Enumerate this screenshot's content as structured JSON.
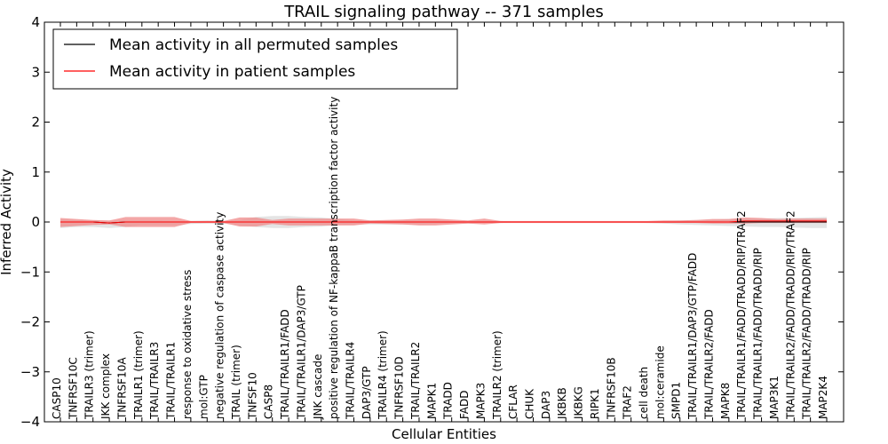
{
  "chart_data": {
    "type": "line",
    "title": "TRAIL signaling pathway -- 371 samples",
    "xlabel": "Cellular Entities",
    "ylabel": "Inferred Activity",
    "ylim": [
      -4,
      4
    ],
    "yticks": [
      "4",
      "3",
      "2",
      "1",
      "0",
      "−1",
      "−2",
      "−3",
      "−4"
    ],
    "legend": {
      "placement": "top-left",
      "entries": [
        {
          "label": "Mean activity in all permuted samples",
          "color": "#000000"
        },
        {
          "label": "Mean activity in patient samples",
          "color": "#ff0000"
        }
      ]
    },
    "categories": [
      "CASP10",
      "TNFRSF10C",
      "TRAILR3 (trimer)",
      "IKK complex",
      "TNFRSF10A",
      "TRAILR1 (trimer)",
      "TRAIL/TRAILR3",
      "TRAIL/TRAILR1",
      "response to oxidative stress",
      "mol:GTP",
      "negative regulation of caspase activity",
      "TRAIL (trimer)",
      "TNFSF10",
      "CASP8",
      "TRAIL/TRAILR1/FADD",
      "TRAIL/TRAILR1/DAP3/GTP",
      "JNK cascade",
      "positive regulation of NF-kappaB transcription factor activity",
      "TRAIL/TRAILR4",
      "DAP3/GTP",
      "TRAILR4 (trimer)",
      "TNFRSF10D",
      "TRAIL/TRAILR2",
      "MAPK1",
      "TRADD",
      "FADD",
      "MAPK3",
      "TRAILR2 (trimer)",
      "CFLAR",
      "CHUK",
      "DAP3",
      "IKBKB",
      "IKBKG",
      "RIPK1",
      "TNFRSF10B",
      "TRAF2",
      "cell death",
      "mol:ceramide",
      "SMPD1",
      "TRAIL/TRAILR1/DAP3/GTP/FADD",
      "TRAIL/TRAILR2/FADD",
      "MAPK8",
      "TRAIL/TRAILR1/FADD/TRADD/RIP/TRAF2",
      "TRAIL/TRAILR1/FADD/TRADD/RIP",
      "MAP3K1",
      "TRAIL/TRAILR2/FADD/TRADD/RIP/TRAF2",
      "TRAIL/TRAILR2/FADD/TRADD/RIP",
      "MAP2K4"
    ],
    "series": [
      {
        "name": "Mean activity in all permuted samples",
        "values": [
          0,
          0,
          0,
          -0.02,
          0,
          0,
          0,
          0,
          0,
          0,
          0,
          0,
          0,
          0,
          0,
          0,
          0,
          0,
          0,
          0,
          0,
          0,
          0,
          0,
          0,
          0,
          0,
          0,
          0,
          0,
          0,
          0,
          0,
          0,
          0,
          0,
          0,
          0,
          0,
          0,
          0,
          0,
          0,
          0,
          0,
          0,
          0,
          0
        ],
        "band_upper": [
          0.05,
          0.04,
          0.03,
          0.02,
          0.03,
          0.03,
          0.03,
          0.02,
          0.02,
          0.03,
          0.02,
          0.04,
          0.1,
          0.12,
          0.12,
          0.1,
          0.09,
          0.06,
          0.03,
          0.03,
          0.03,
          0.03,
          0.03,
          0.03,
          0.02,
          0.02,
          0.02,
          0.02,
          0.01,
          0.01,
          0.01,
          0.01,
          0.01,
          0.01,
          0.01,
          0.01,
          0.01,
          0.02,
          0.03,
          0.04,
          0.04,
          0.06,
          0.06,
          0.07,
          0.08,
          0.08,
          0.09,
          0.1
        ],
        "band_lower": [
          -0.12,
          -0.1,
          -0.1,
          -0.12,
          -0.1,
          -0.06,
          -0.06,
          -0.06,
          -0.04,
          -0.03,
          -0.03,
          -0.07,
          -0.1,
          -0.12,
          -0.12,
          -0.1,
          -0.09,
          -0.06,
          -0.05,
          -0.05,
          -0.05,
          -0.05,
          -0.05,
          -0.04,
          -0.03,
          -0.03,
          -0.02,
          -0.02,
          -0.01,
          -0.01,
          -0.01,
          -0.01,
          -0.01,
          -0.01,
          -0.01,
          -0.01,
          -0.02,
          -0.03,
          -0.05,
          -0.06,
          -0.07,
          -0.08,
          -0.09,
          -0.1,
          -0.1,
          -0.11,
          -0.12,
          -0.12
        ]
      },
      {
        "name": "Mean activity in patient samples",
        "values": [
          0,
          0,
          0,
          -0.02,
          0,
          0,
          0,
          0,
          0,
          0,
          0,
          0,
          0,
          0,
          0,
          0,
          0,
          0,
          0,
          0,
          0,
          0,
          0,
          0,
          0,
          0,
          0,
          0,
          0,
          0,
          0,
          0,
          0,
          0,
          0,
          0,
          0,
          0,
          0,
          0,
          0,
          0,
          0.02,
          0.02,
          0.02,
          0.02,
          0.02,
          0.02
        ],
        "band_upper": [
          0.08,
          0.06,
          0.04,
          0.03,
          0.1,
          0.1,
          0.1,
          0.1,
          0.02,
          0.02,
          0.02,
          0.09,
          0.09,
          0.04,
          0.07,
          0.07,
          0.07,
          0.07,
          0.07,
          0.03,
          0.04,
          0.05,
          0.07,
          0.07,
          0.05,
          0.03,
          0.07,
          0.02,
          0.02,
          0.02,
          0.02,
          0.02,
          0.02,
          0.02,
          0.02,
          0.02,
          0.02,
          0.03,
          0.03,
          0.04,
          0.06,
          0.06,
          0.09,
          0.08,
          0.06,
          0.07,
          0.07,
          0.07
        ],
        "band_lower": [
          -0.1,
          -0.08,
          -0.06,
          -0.05,
          -0.1,
          -0.1,
          -0.1,
          -0.1,
          -0.02,
          -0.02,
          -0.02,
          -0.09,
          -0.09,
          -0.04,
          -0.07,
          -0.07,
          -0.07,
          -0.07,
          -0.07,
          -0.03,
          -0.04,
          -0.05,
          -0.07,
          -0.07,
          -0.05,
          -0.03,
          -0.05,
          -0.02,
          -0.02,
          -0.02,
          -0.02,
          -0.02,
          -0.02,
          -0.02,
          -0.02,
          -0.02,
          -0.02,
          -0.02,
          -0.02,
          -0.02,
          -0.03,
          -0.03,
          -0.03,
          -0.02,
          -0.02,
          -0.02,
          -0.02,
          -0.02
        ]
      }
    ],
    "series_colors": {
      "permuted_band": "#d9d9d9",
      "patient_band": "#ef8a8a",
      "permuted_line": "#000000",
      "patient_line": "#ff0000"
    }
  }
}
